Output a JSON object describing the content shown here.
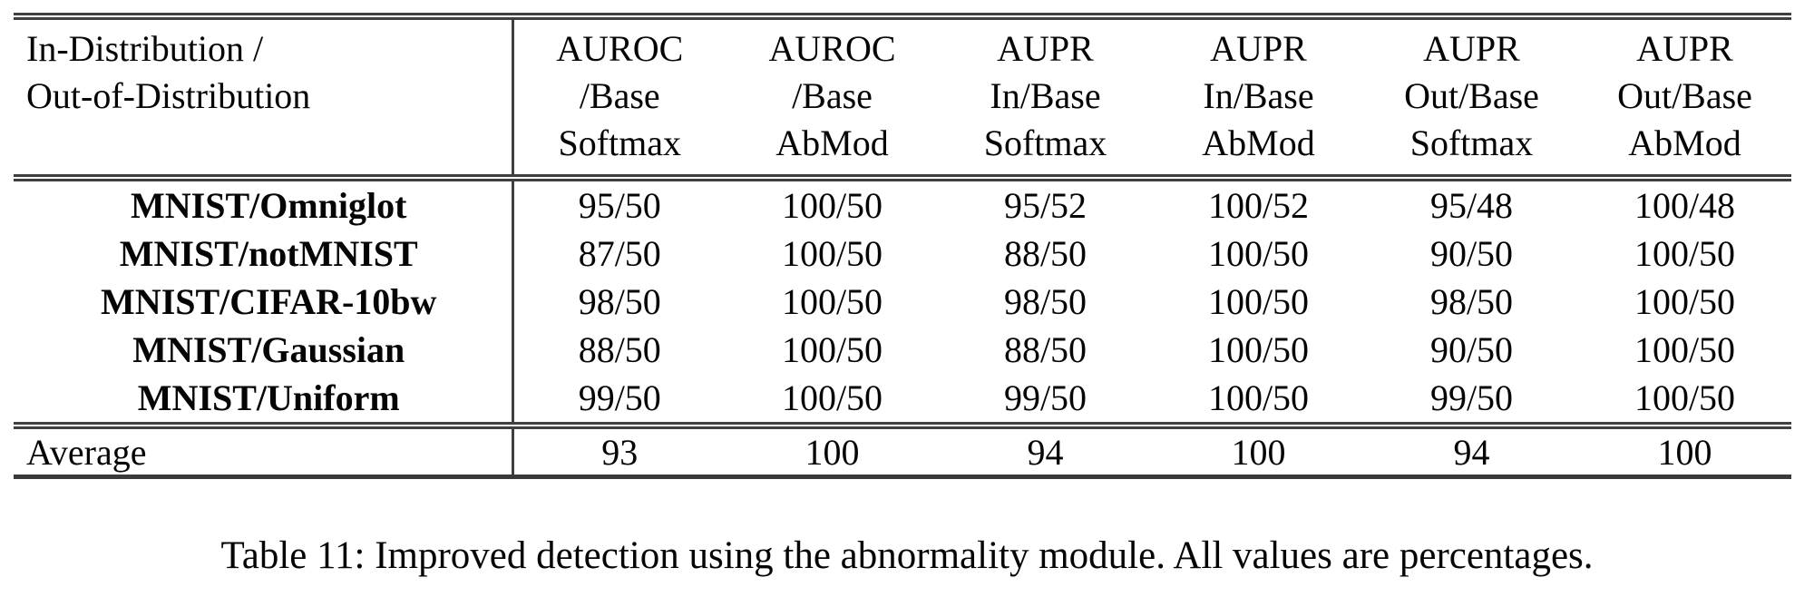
{
  "colors": {
    "background": "#ffffff",
    "text": "#050505",
    "rule": "#3f3f3f"
  },
  "table": {
    "header": {
      "row_label_line1": "In-Distribution /",
      "row_label_line2": "Out-of-Distribution",
      "columns": [
        {
          "line1": "AUROC",
          "line2": "/Base",
          "line3": "Softmax"
        },
        {
          "line1": "AUROC",
          "line2": "/Base",
          "line3": "AbMod"
        },
        {
          "line1": "AUPR",
          "line2": "In/Base",
          "line3": "Softmax"
        },
        {
          "line1": "AUPR",
          "line2": "In/Base",
          "line3": "AbMod"
        },
        {
          "line1": "AUPR",
          "line2": "Out/Base",
          "line3": "Softmax"
        },
        {
          "line1": "AUPR",
          "line2": "Out/Base",
          "line3": "AbMod"
        }
      ]
    },
    "rows": [
      {
        "label": "MNIST/Omniglot",
        "values": [
          "95/50",
          "100/50",
          "95/52",
          "100/52",
          "95/48",
          "100/48"
        ]
      },
      {
        "label": "MNIST/notMNIST",
        "values": [
          "87/50",
          "100/50",
          "88/50",
          "100/50",
          "90/50",
          "100/50"
        ]
      },
      {
        "label": "MNIST/CIFAR-10bw",
        "values": [
          "98/50",
          "100/50",
          "98/50",
          "100/50",
          "98/50",
          "100/50"
        ]
      },
      {
        "label": "MNIST/Gaussian",
        "values": [
          "88/50",
          "100/50",
          "88/50",
          "100/50",
          "90/50",
          "100/50"
        ]
      },
      {
        "label": "MNIST/Uniform",
        "values": [
          "99/50",
          "100/50",
          "99/50",
          "100/50",
          "99/50",
          "100/50"
        ]
      }
    ],
    "footer": {
      "label": "Average",
      "values": [
        "93",
        "100",
        "94",
        "100",
        "94",
        "100"
      ]
    }
  },
  "caption": {
    "text": "Table 11: Improved detection using the abnormality module. All values are percentages."
  }
}
